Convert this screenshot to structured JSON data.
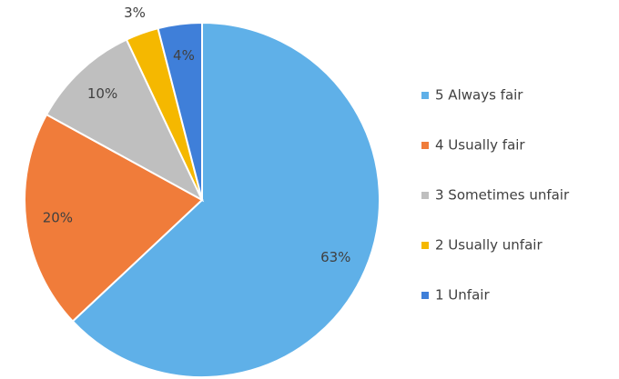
{
  "chart_data": {
    "type": "pie",
    "categories": [
      "5 Always fair",
      "4 Usually fair",
      "3 Sometimes unfair",
      "2 Usually unfair",
      "1 Unfair"
    ],
    "values": [
      63,
      20,
      10,
      3,
      4
    ],
    "value_labels": [
      "63%",
      "20%",
      "10%",
      "3%",
      "4%"
    ],
    "colors": [
      "#5fb0e8",
      "#f07c3a",
      "#bfbfbf",
      "#f5b800",
      "#3f7fd9"
    ],
    "legend": "right"
  }
}
